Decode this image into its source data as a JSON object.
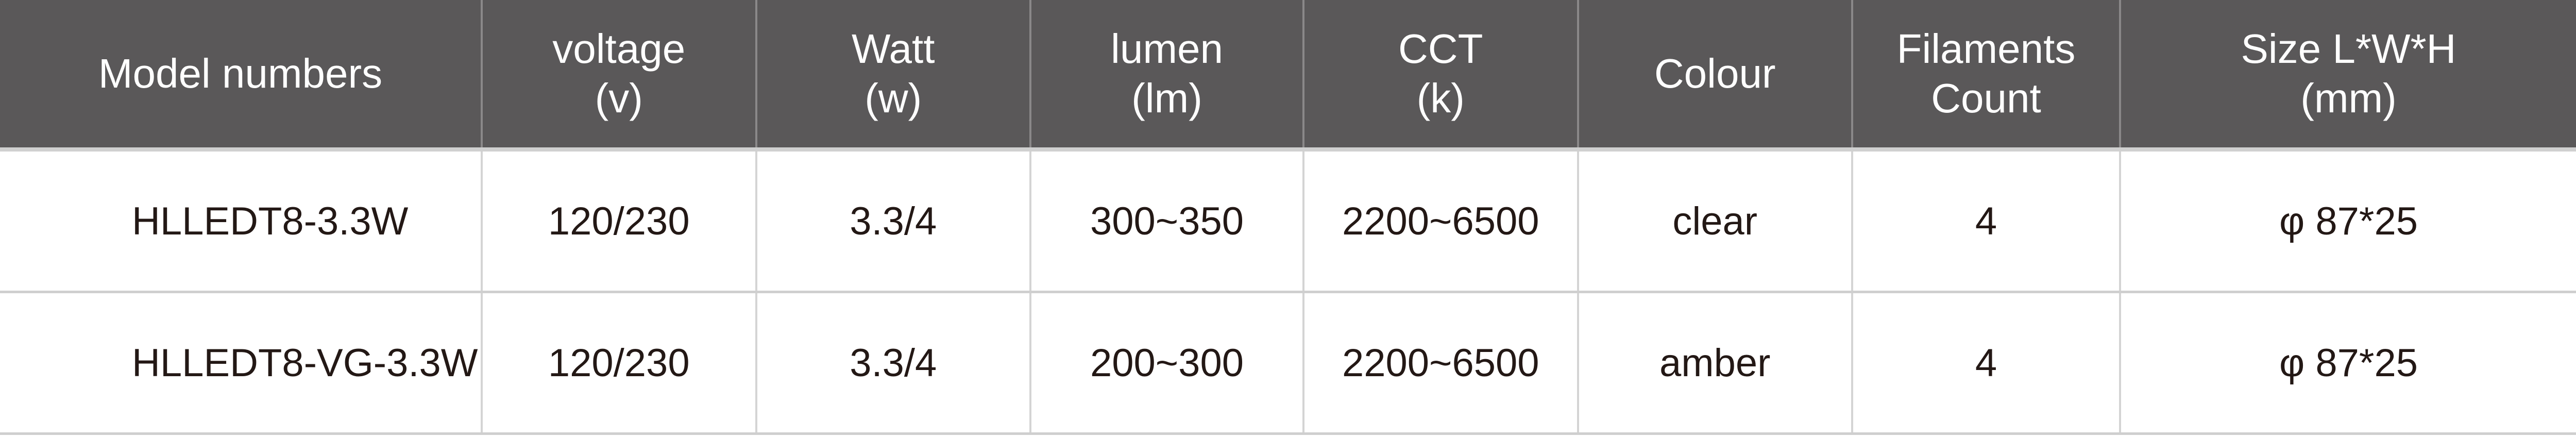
{
  "table": {
    "header_color": "#5a5859",
    "headers": [
      {
        "line1": "Model numbers",
        "line2": ""
      },
      {
        "line1": "voltage",
        "line2": "(v)"
      },
      {
        "line1": "Watt",
        "line2": "(w)"
      },
      {
        "line1": "lumen",
        "line2": "(lm)"
      },
      {
        "line1": "CCT",
        "line2": "(k)"
      },
      {
        "line1": "Colour",
        "line2": ""
      },
      {
        "line1": "Filaments",
        "line2": "Count"
      },
      {
        "line1": "Size L*W*H",
        "line2": "(mm)"
      }
    ],
    "rows": [
      [
        "HLLEDT8-3.3W",
        "120/230",
        "3.3/4",
        "300~350",
        "2200~6500",
        "clear",
        "4",
        "φ 87*25"
      ],
      [
        "HLLEDT8-VG-3.3W",
        "120/230",
        "3.3/4",
        "200~300",
        "2200~6500",
        "amber",
        "4",
        "φ 87*25"
      ]
    ]
  }
}
